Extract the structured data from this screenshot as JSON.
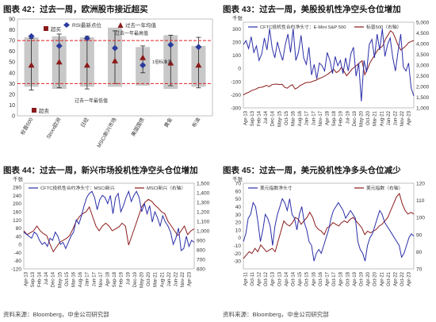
{
  "chart_data": [
    {
      "type": "bar",
      "title": "图表 42：过去一周，欧洲股市接近超买",
      "categories": [
        "标普500",
        "Stoxx欧洲",
        "日经",
        "MSCI新兴市场",
        "美国国债",
        "黄金",
        "布油"
      ],
      "series": [
        {
          "name": "RSI最新点位",
          "values": [
            74,
            65,
            72,
            63,
            47,
            66,
            64
          ]
        },
        {
          "name": "过去一年均值",
          "values": [
            47,
            50,
            47,
            51,
            54,
            49,
            47
          ]
        }
      ],
      "lows": [
        24,
        26,
        25,
        30,
        40,
        28,
        26
      ],
      "highs": [
        72,
        76,
        74,
        79,
        65,
        75,
        73
      ],
      "band_top": [
        73,
        74,
        73,
        82,
        64,
        75,
        65
      ],
      "band_bottom": [
        27,
        25,
        27,
        27,
        28,
        25,
        27
      ],
      "ylim": [
        0,
        90
      ],
      "yticks": [
        0,
        10,
        20,
        30,
        40,
        50,
        60,
        70,
        80,
        90
      ],
      "ref_lines": [
        70,
        30
      ],
      "annotations": {
        "overbought": "超买",
        "oversold": "超卖",
        "high_label": "过去一年最高值",
        "low_label": "过去一年最低值",
        "sd_label": "1倍标准差"
      },
      "legend": "top"
    },
    {
      "type": "line",
      "title": "图表 43：过去一周，美股投机性净空头仓位增加",
      "left_unit": "千张",
      "series_names": [
        "CFTC投机性合约净头寸：E-Mini S&P 500",
        "标普500（右轴）"
      ],
      "colors": [
        "#2b2fa8",
        "#8b1a1a"
      ],
      "x_labels": [
        "Apr-13",
        "Sep-13",
        "Feb-14",
        "Jul-14",
        "Dec-14",
        "May-15",
        "Oct-15",
        "Mar-16",
        "Aug-16",
        "Jan-17",
        "Jun-17",
        "Nov-17",
        "Apr-18",
        "Sep-18",
        "Feb-19",
        "Jul-19",
        "Dec-19",
        "May-20",
        "Oct-20",
        "Mar-21",
        "Aug-21",
        "Jan-22",
        "Jun-22",
        "Nov-22",
        "Apr-23"
      ],
      "ylim_left": [
        -300,
        350
      ],
      "yticks_left": [
        -300,
        -200,
        -100,
        0,
        100,
        200,
        300
      ],
      "ylim_right": [
        1000,
        5000
      ],
      "yticks_right": [
        "1,000",
        "1,500",
        "2,000",
        "2,500",
        "3,000",
        "3,500",
        "4,000",
        "4,500",
        "5,000"
      ],
      "net_position": [
        180,
        210,
        150,
        240,
        120,
        170,
        60,
        110,
        230,
        140,
        300,
        150,
        80,
        200,
        120,
        60,
        180,
        260,
        120,
        300,
        60,
        120,
        250,
        80,
        30,
        160,
        -50,
        30,
        -80,
        40,
        20,
        -20,
        120,
        60,
        -40,
        90,
        20,
        60,
        -40,
        80,
        -20,
        110,
        160,
        -60,
        40,
        -250,
        60,
        -30,
        180,
        220,
        80,
        260,
        140,
        300,
        90,
        180,
        230,
        80,
        -20,
        130,
        260,
        10,
        -20,
        40,
        -150,
        -210
      ],
      "spx": [
        1600,
        1680,
        1720,
        1800,
        1840,
        1880,
        1950,
        1960,
        2000,
        2050,
        1990,
        2080,
        2100,
        2110,
        2090,
        2100,
        1960,
        1920,
        2020,
        2080,
        1880,
        1940,
        2050,
        2100,
        2170,
        2190,
        2200,
        2250,
        2280,
        2350,
        2400,
        2450,
        2520,
        2600,
        2700,
        2800,
        2650,
        2720,
        2900,
        2700,
        2500,
        2650,
        2800,
        2900,
        3000,
        3100,
        3200,
        2550,
        2800,
        3100,
        3300,
        3500,
        3700,
        3800,
        3900,
        4200,
        4400,
        4600,
        4500,
        4200,
        3900,
        3700,
        3800,
        3900,
        4050,
        4100,
        4150
      ]
    },
    {
      "type": "line",
      "title": "图表 44：过去一周，新兴市场投机性净空头仓位增加",
      "left_unit": "千张",
      "series_names": [
        "CFTC投机性合约净头寸：MSCI新兴",
        "MSCI新兴（右轴）"
      ],
      "colors": [
        "#2b2fa8",
        "#8b1a1a"
      ],
      "x_labels": [
        "Apr-13",
        "Sep-13",
        "Feb-14",
        "Jul-14",
        "Dec-14",
        "May-15",
        "Oct-15",
        "Mar-16",
        "Aug-16",
        "Jan-17",
        "Jun-17",
        "Nov-17",
        "Apr-18",
        "Sep-18",
        "Feb-19",
        "Jul-19",
        "Dec-19",
        "May-20",
        "Oct-20",
        "Mar-21",
        "Aug-21",
        "Jan-22",
        "Jun-22",
        "Nov-22",
        "Apr-23"
      ],
      "ylim_left": [
        -120,
        300
      ],
      "yticks_left": [
        -120,
        -80,
        -40,
        0,
        40,
        80,
        120,
        160,
        200,
        240,
        280
      ],
      "ylim_right": [
        600,
        1500
      ],
      "yticks_right": [
        "600",
        "700",
        "800",
        "900",
        "1,000",
        "1,100",
        "1,200",
        "1,300",
        "1,400",
        "1,500"
      ],
      "net_position": [
        60,
        50,
        40,
        30,
        60,
        50,
        20,
        0,
        10,
        -10,
        30,
        20,
        60,
        40,
        0,
        10,
        -20,
        10,
        40,
        60,
        120,
        100,
        140,
        190,
        230,
        250,
        260,
        230,
        170,
        220,
        240,
        230,
        200,
        240,
        150,
        230,
        250,
        160,
        190,
        230,
        260,
        210,
        240,
        260,
        230,
        160,
        200,
        150,
        190,
        110,
        160,
        130,
        90,
        140,
        110,
        90,
        60,
        0,
        30,
        80,
        -30,
        -20,
        40,
        -10,
        20,
        10
      ],
      "msci": [
        1000,
        960,
        980,
        1000,
        1050,
        1000,
        970,
        950,
        860,
        780,
        830,
        880,
        900,
        920,
        950,
        1020,
        1100,
        1150,
        1180,
        1200,
        1250,
        1150,
        1050,
        1000,
        1050,
        1080,
        1050,
        1000,
        1020,
        1040,
        1080,
        1050,
        850,
        950,
        1050,
        1150,
        1250,
        1300,
        1330,
        1310,
        1270,
        1240,
        1200,
        1180,
        1100,
        1050,
        1000,
        950,
        1000,
        1050,
        960,
        1000,
        1020
      ]
    },
    {
      "type": "line",
      "title": "图表 45：过去一周，美元投机性净多头仓位减少",
      "left_unit": "千张",
      "series_names": [
        "美元指数净头寸",
        "美元指数（右轴）"
      ],
      "colors": [
        "#2b2fa8",
        "#8b1a1a"
      ],
      "x_labels": [
        "Apr-11",
        "Oct-11",
        "Apr-12",
        "Oct-12",
        "Apr-13",
        "Oct-13",
        "Apr-14",
        "Oct-14",
        "Apr-15",
        "Oct-15",
        "Apr-16",
        "Oct-16",
        "Apr-17",
        "Oct-17",
        "Apr-18",
        "Oct-18",
        "Apr-19",
        "Oct-19",
        "Apr-20",
        "Oct-20",
        "Apr-21",
        "Oct-21",
        "Apr-22",
        "Oct-22",
        "Apr-23"
      ],
      "ylim_left": [
        -40,
        70
      ],
      "yticks_left": [
        -30,
        -20,
        -10,
        0,
        10,
        20,
        30,
        40,
        50,
        60,
        70
      ],
      "ylim_right": [
        70,
        120
      ],
      "yticks_right": [
        "70",
        "80",
        "90",
        "100",
        "110",
        "120"
      ],
      "net_position": [
        -5,
        5,
        25,
        30,
        45,
        40,
        20,
        -5,
        10,
        30,
        25,
        15,
        -10,
        15,
        30,
        40,
        50,
        45,
        35,
        50,
        30,
        25,
        10,
        30,
        40,
        20,
        10,
        -5,
        -10,
        -30,
        -20,
        -15,
        -20,
        -10,
        0,
        10,
        25,
        35,
        40,
        45,
        40,
        35,
        25,
        30,
        35,
        30,
        25,
        -5,
        -15,
        -20,
        -30,
        -10,
        0,
        5,
        15,
        25,
        35,
        30,
        20,
        15,
        10,
        5,
        0,
        -5,
        -10,
        -25,
        -20,
        -10,
        0,
        5,
        2
      ],
      "dxy": [
        76,
        78,
        80,
        79,
        82,
        80,
        84,
        82,
        80,
        81,
        82,
        80,
        86,
        92,
        98,
        96,
        95,
        97,
        100,
        99,
        96,
        98,
        100,
        103,
        100,
        95,
        93,
        92,
        90,
        94,
        95,
        97,
        96,
        95,
        97,
        98,
        97,
        99,
        100,
        98,
        96,
        94,
        90,
        92,
        91,
        92,
        93,
        95,
        96,
        98,
        100,
        104,
        108,
        112,
        114,
        108,
        104,
        102,
        103,
        102
      ]
    }
  ],
  "sources": [
    "资料来源：Bloomberg，中金公司研究部",
    "资料来源：Bloomberg，中金公司研究部"
  ]
}
